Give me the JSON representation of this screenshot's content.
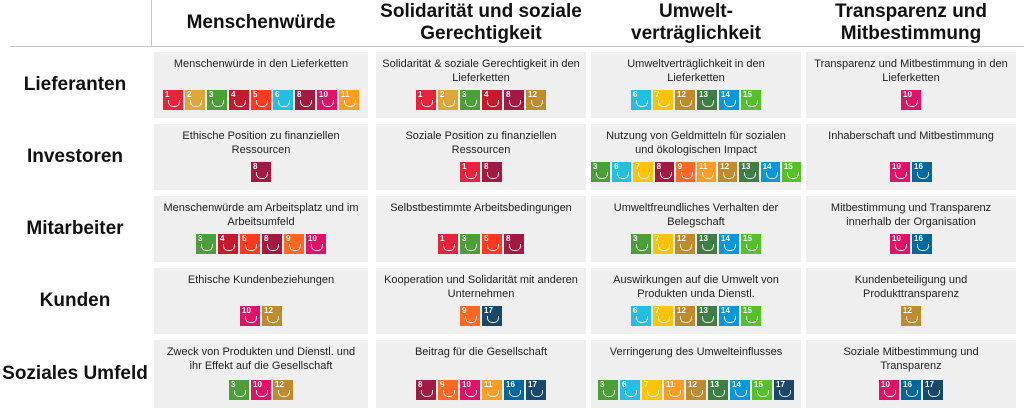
{
  "columns": [
    "Menschenwürde",
    "Solidarität und soziale Gerechtigkeit",
    "Umwelt-\nverträglichkeit",
    "Transparenz und Mitbestimmung"
  ],
  "sdg_colors": {
    "1": "#E5243B",
    "2": "#DDA63A",
    "3": "#4C9F38",
    "4": "#C5192D",
    "5": "#FF3A21",
    "6": "#26BDE2",
    "7": "#FCC30B",
    "8": "#A21942",
    "9": "#FD6925",
    "10": "#DD1367",
    "11": "#FD9D24",
    "12": "#BF8B2E",
    "13": "#3F7E44",
    "14": "#0A97D9",
    "15": "#56C02B",
    "16": "#00689D",
    "17": "#19486A"
  },
  "rows": [
    {
      "label": "Lieferanten",
      "cells": [
        {
          "text": "Menschenwürde in den Lieferketten",
          "sdgs": [
            1,
            2,
            3,
            4,
            5,
            6,
            8,
            10,
            11
          ]
        },
        {
          "text": "Solidarität & soziale Gerechtigkeit in den Lieferketten",
          "sdgs": [
            1,
            2,
            3,
            4,
            8,
            12
          ]
        },
        {
          "text": "Umweltverträglichkeit in den Lieferketten",
          "sdgs": [
            6,
            7,
            12,
            13,
            14,
            15
          ]
        },
        {
          "text": "Transparenz und Mitbestimmung in den Lieferketten",
          "sdgs": [
            10
          ]
        }
      ]
    },
    {
      "label": "Investoren",
      "cells": [
        {
          "text": "Ethische Position zu finanziellen Ressourcen",
          "sdgs": [
            8
          ]
        },
        {
          "text": "Soziale Position zu finanziellen Ressourcen",
          "sdgs": [
            1,
            8
          ]
        },
        {
          "text": "Nutzung von Geldmitteln für sozialen und ökologischen Impact",
          "sdgs": [
            3,
            6,
            7,
            8,
            9,
            11,
            12,
            13,
            14,
            15
          ]
        },
        {
          "text": "Inhaberschaft und Mitbestimmung",
          "sdgs": [
            10,
            16
          ]
        }
      ]
    },
    {
      "label": "Mitarbeiter",
      "cells": [
        {
          "text": "Menschenwürde am Arbeitsplatz und im Arbeitsumfeld",
          "sdgs": [
            3,
            4,
            5,
            8,
            9,
            10
          ]
        },
        {
          "text": "Selbstbestimmte Arbeitsbedingungen",
          "sdgs": [
            1,
            3,
            5,
            8
          ]
        },
        {
          "text": "Umweltfreundliches Verhalten der Belegschaft",
          "sdgs": [
            3,
            7,
            12,
            13,
            14,
            15
          ]
        },
        {
          "text": "Mitbestimmung und Transparenz innerhalb der Organisation",
          "sdgs": [
            10,
            16
          ]
        }
      ]
    },
    {
      "label": "Kunden",
      "cells": [
        {
          "text": "Ethische Kundenbeziehungen",
          "sdgs": [
            10,
            12
          ]
        },
        {
          "text": "Kooperation und Solidarität mit anderen Unternehmen",
          "sdgs": [
            9,
            17
          ]
        },
        {
          "text": "Auswirkungen auf die Umwelt von Produkten unda Dienstl.",
          "sdgs": [
            6,
            7,
            12,
            13,
            14,
            15
          ]
        },
        {
          "text": "Kundenbeteiligung und Produkttransparenz",
          "sdgs": [
            12
          ]
        }
      ]
    },
    {
      "label": "Soziales Umfeld",
      "cells": [
        {
          "text": "Zweck von Produkten und Dienstl. und ihr Effekt auf die Gesellschaft",
          "sdgs": [
            3,
            10,
            12
          ]
        },
        {
          "text": "Beitrag für die Gesellschaft",
          "sdgs": [
            8,
            9,
            10,
            11,
            16,
            17
          ]
        },
        {
          "text": "Verringerung des Umwelteinflusses",
          "sdgs": [
            3,
            6,
            7,
            11,
            12,
            13,
            14,
            15,
            17
          ]
        },
        {
          "text": "Soziale Mitbestimmung und Transparenz",
          "sdgs": [
            10,
            16,
            17
          ]
        }
      ]
    }
  ]
}
